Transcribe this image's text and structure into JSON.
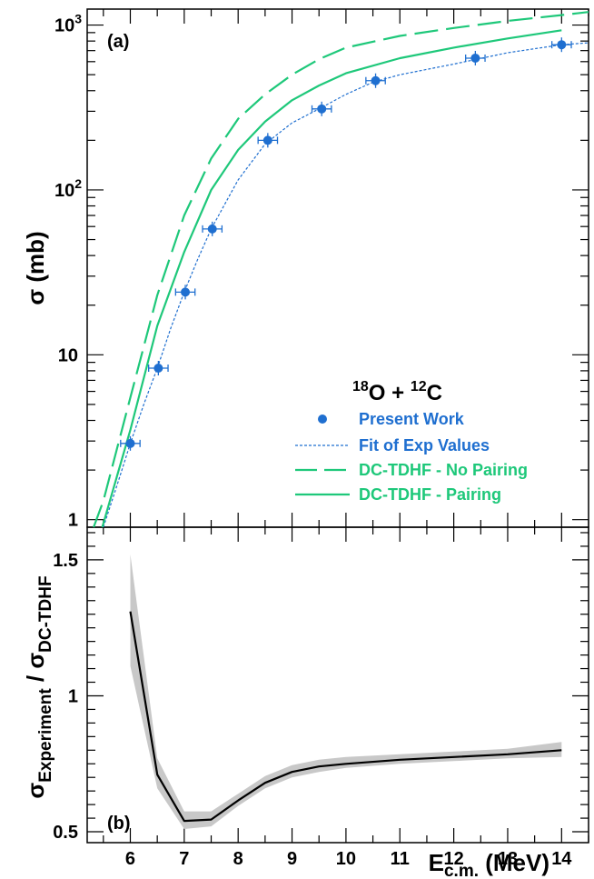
{
  "colors": {
    "data": "#1f6fd0",
    "tdhf": "#1ec87a",
    "ratio": "#000000",
    "band": "#c8c8c8"
  },
  "chart_data": [
    {
      "panel": "(a)",
      "type": "scatter",
      "y_scale": "log",
      "xlim": [
        5.2,
        14.5
      ],
      "ylim": [
        0.9,
        1250
      ],
      "ylabel": "σ (mb)",
      "yticks": [
        {
          "value": 1,
          "label": "1"
        },
        {
          "value": 10,
          "label": "10"
        },
        {
          "value": 100,
          "label": "10",
          "sup": "2"
        },
        {
          "value": 1000,
          "label": "10",
          "sup": "3"
        }
      ],
      "legend": {
        "title": {
          "a": "18",
          "b": "O + ",
          "c": "12",
          "d": "C"
        },
        "placement": "lower-right",
        "entries": [
          {
            "label": "Present Work",
            "style": "marker",
            "color": "#1f6fd0"
          },
          {
            "label": "Fit of Exp Values",
            "style": "dotted",
            "color": "#1f6fd0"
          },
          {
            "label": "DC-TDHF - No Pairing",
            "style": "dashed",
            "color": "#1ec87a"
          },
          {
            "label": "DC-TDHF - Pairing",
            "style": "solid",
            "color": "#1ec87a"
          }
        ]
      },
      "series": [
        {
          "name": "Present Work",
          "style": "marker",
          "x": [
            6.0,
            6.52,
            7.02,
            7.52,
            8.55,
            9.55,
            10.55,
            12.4,
            14.0
          ],
          "y": [
            2.9,
            8.3,
            24,
            58,
            200,
            310,
            460,
            630,
            760
          ],
          "xerr": 0.18
        },
        {
          "name": "Fit of Exp Values",
          "style": "dotted",
          "x": [
            5.5,
            5.75,
            6.0,
            6.25,
            6.5,
            6.75,
            7.0,
            7.25,
            7.5,
            8.0,
            8.5,
            9.0,
            9.5,
            10.0,
            10.5,
            11.0,
            12.0,
            13.0,
            14.0,
            14.5
          ],
          "y": [
            0.9,
            1.6,
            2.9,
            5.0,
            8.3,
            14.5,
            24,
            38,
            58,
            115,
            190,
            255,
            310,
            380,
            450,
            500,
            580,
            680,
            760,
            780
          ]
        },
        {
          "name": "DC-TDHF - No Pairing",
          "style": "dashed",
          "x": [
            5.32,
            5.5,
            6.0,
            6.5,
            7.0,
            7.5,
            8.0,
            8.5,
            9.0,
            9.5,
            10.0,
            11.0,
            12.0,
            13.0,
            14.0,
            14.5
          ],
          "y": [
            0.9,
            1.3,
            5.5,
            23,
            70,
            155,
            270,
            380,
            500,
            620,
            730,
            860,
            960,
            1060,
            1150,
            1200
          ]
        },
        {
          "name": "DC-TDHF - Pairing",
          "style": "solid",
          "x": [
            5.48,
            6.0,
            6.5,
            7.0,
            7.5,
            8.0,
            8.5,
            9.0,
            9.5,
            10.0,
            11.0,
            12.0,
            13.0,
            14.0
          ],
          "y": [
            0.9,
            3.5,
            15,
            42,
            100,
            175,
            260,
            350,
            430,
            510,
            630,
            730,
            830,
            930
          ]
        }
      ]
    },
    {
      "panel": "(b)",
      "type": "line",
      "xlim": [
        5.2,
        14.5
      ],
      "ylim": [
        0.46,
        1.62
      ],
      "xlabel": {
        "main": "E",
        "sub": "c.m.",
        "rest": " (MeV)"
      },
      "ylabel": {
        "s1": "σ",
        "sub1": "Experiment",
        "slash": " / ",
        "s2": "σ",
        "sub2": "DC-TDHF"
      },
      "xticks": [
        "6",
        "7",
        "8",
        "9",
        "10",
        "11",
        "12",
        "13",
        "14"
      ],
      "yticks": [
        "0.5",
        "1",
        "1.5"
      ],
      "series": [
        {
          "name": "ratio",
          "x": [
            6.0,
            6.5,
            7.0,
            7.5,
            8.0,
            8.5,
            9.0,
            9.5,
            10.0,
            11.0,
            12.0,
            13.0,
            14.0
          ],
          "y": [
            1.31,
            0.71,
            0.54,
            0.545,
            0.615,
            0.68,
            0.72,
            0.74,
            0.75,
            0.765,
            0.775,
            0.785,
            0.8
          ],
          "lower": [
            1.11,
            0.66,
            0.51,
            0.52,
            0.595,
            0.66,
            0.7,
            0.72,
            0.735,
            0.75,
            0.76,
            0.77,
            0.775
          ],
          "upper": [
            1.52,
            0.77,
            0.575,
            0.575,
            0.64,
            0.705,
            0.745,
            0.765,
            0.775,
            0.785,
            0.795,
            0.805,
            0.83
          ]
        }
      ]
    }
  ]
}
